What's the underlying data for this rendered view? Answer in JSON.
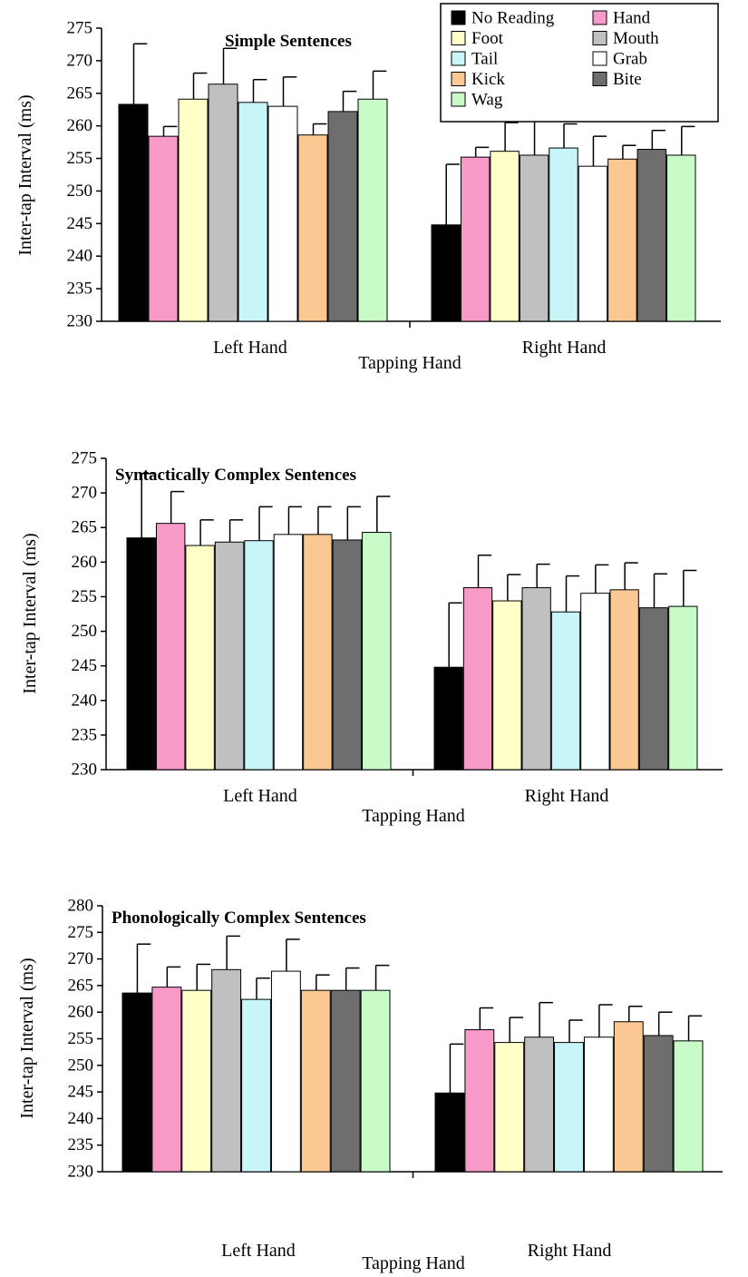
{
  "legend": {
    "placement": "top-right",
    "entries": [
      {
        "name": "No Reading",
        "color": "#000000"
      },
      {
        "name": "Hand",
        "color": "#f79ac8"
      },
      {
        "name": "Foot",
        "color": "#ffffc8"
      },
      {
        "name": "Mouth",
        "color": "#c0c0c0"
      },
      {
        "name": "Tail",
        "color": "#c8f6f8"
      },
      {
        "name": "Grab",
        "color": "#ffffff"
      },
      {
        "name": "Kick",
        "color": "#fbc894"
      },
      {
        "name": "Bite",
        "color": "#6e6e6e"
      },
      {
        "name": "Wag",
        "color": "#c8fbc8"
      }
    ]
  },
  "chart_data": [
    {
      "type": "bar",
      "title": "Simple Sentences",
      "xlabel": "Tapping Hand",
      "ylabel": "Inter-tap Interval (ms)",
      "ylim": [
        230,
        275
      ],
      "yticks": [
        "275",
        "270",
        "265",
        "260",
        "255",
        "250",
        "245",
        "240",
        "235",
        "230"
      ],
      "categories": [
        "Left Hand",
        "Right Hand"
      ],
      "series_order": [
        "No Reading",
        "Hand",
        "Foot",
        "Mouth",
        "Tail",
        "Grab",
        "Kick",
        "Bite",
        "Wag"
      ],
      "values": [
        [
          263.3,
          258.4,
          264.1,
          266.4,
          263.6,
          263.0,
          258.6,
          262.2,
          264.1
        ],
        [
          244.8,
          255.2,
          256.1,
          255.5,
          256.6,
          253.8,
          254.9,
          256.4,
          255.5
        ]
      ],
      "errors": [
        [
          9.3,
          1.5,
          4.0,
          5.5,
          3.5,
          4.5,
          1.7,
          3.1,
          4.3
        ],
        [
          9.3,
          1.5,
          4.4,
          5.5,
          3.7,
          4.6,
          2.1,
          2.9,
          4.4
        ]
      ]
    },
    {
      "type": "bar",
      "title": "Syntactically Complex Sentences",
      "xlabel": "Tapping Hand",
      "ylabel": "Inter-tap Interval (ms)",
      "ylim": [
        230,
        275
      ],
      "yticks": [
        "275",
        "270",
        "265",
        "260",
        "255",
        "250",
        "245",
        "240",
        "235",
        "230"
      ],
      "categories": [
        "Left Hand",
        "Right Hand"
      ],
      "series_order": [
        "No Reading",
        "Hand",
        "Foot",
        "Mouth",
        "Tail",
        "Grab",
        "Kick",
        "Bite",
        "Wag"
      ],
      "values": [
        [
          263.5,
          265.6,
          262.4,
          262.9,
          263.1,
          264.0,
          264.0,
          263.2,
          264.3
        ],
        [
          244.8,
          256.3,
          254.4,
          256.3,
          252.8,
          255.5,
          256.0,
          253.4,
          253.6
        ]
      ],
      "errors": [
        [
          9.3,
          4.6,
          3.7,
          3.2,
          4.9,
          4.0,
          4.0,
          4.8,
          5.2
        ],
        [
          9.3,
          4.7,
          3.8,
          3.4,
          5.2,
          4.1,
          3.9,
          4.9,
          5.2
        ]
      ]
    },
    {
      "type": "bar",
      "title": "Phonologically Complex Sentences",
      "xlabel": "Tapping Hand",
      "ylabel": "Inter-tap Interval (ms)",
      "ylim": [
        230,
        280
      ],
      "yticks": [
        "280",
        "275",
        "270",
        "265",
        "260",
        "255",
        "250",
        "245",
        "240",
        "235",
        "230"
      ],
      "categories": [
        "Left Hand",
        "Right Hand"
      ],
      "series_order": [
        "No Reading",
        "Hand",
        "Foot",
        "Mouth",
        "Tail",
        "Grab",
        "Kick",
        "Bite",
        "Wag"
      ],
      "values": [
        [
          263.6,
          264.7,
          264.1,
          268.0,
          262.4,
          267.7,
          264.1,
          264.1,
          264.1
        ],
        [
          244.8,
          256.7,
          254.3,
          255.3,
          254.3,
          255.3,
          258.2,
          255.6,
          254.6
        ]
      ],
      "errors": [
        [
          9.2,
          3.8,
          4.9,
          6.3,
          4.0,
          6.0,
          2.9,
          4.2,
          4.7
        ],
        [
          9.2,
          4.1,
          4.7,
          6.5,
          4.2,
          6.1,
          2.9,
          4.4,
          4.7
        ]
      ]
    }
  ]
}
